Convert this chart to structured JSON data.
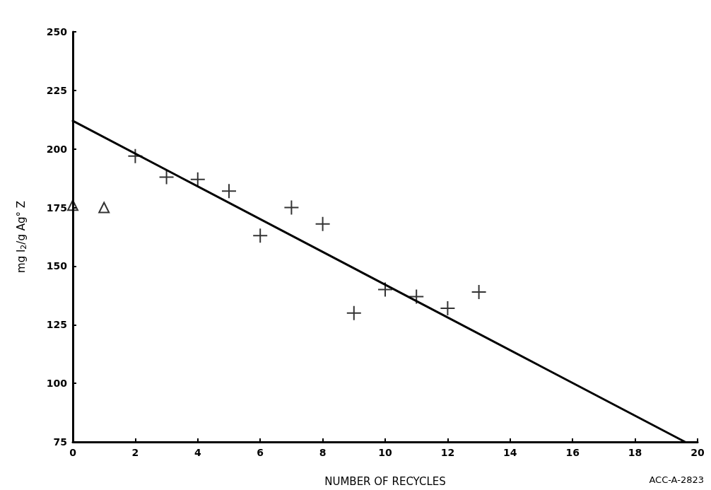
{
  "chart_data": {
    "type": "scatter",
    "xlabel": "NUMBER OF RECYCLES",
    "ylabel": "mg I$_{2}$/g Ag° Z",
    "xlim": [
      0,
      20
    ],
    "xticks": [
      0,
      2,
      4,
      6,
      8,
      10,
      12,
      14,
      16,
      18,
      20
    ],
    "ylim": [
      75,
      250
    ],
    "yticks": [
      75,
      100,
      125,
      150,
      175,
      200,
      225,
      250
    ],
    "grid": false,
    "series": [
      {
        "marker": "triangle",
        "color": "#000000",
        "x": [
          0,
          1
        ],
        "values": [
          176,
          175
        ]
      },
      {
        "marker": "cross",
        "color": "#000000",
        "x": [
          2,
          3,
          4,
          5,
          6,
          7,
          8,
          9,
          10,
          11,
          12,
          13
        ],
        "values": [
          197,
          188,
          187,
          182,
          163,
          175,
          168,
          130,
          140,
          137,
          132,
          139
        ]
      },
      {
        "type": "line",
        "marker": "none",
        "color": "#000000",
        "x": [
          0,
          19.6
        ],
        "values": [
          212,
          75
        ]
      }
    ],
    "annotations": [
      "ACC-A-2823"
    ]
  }
}
